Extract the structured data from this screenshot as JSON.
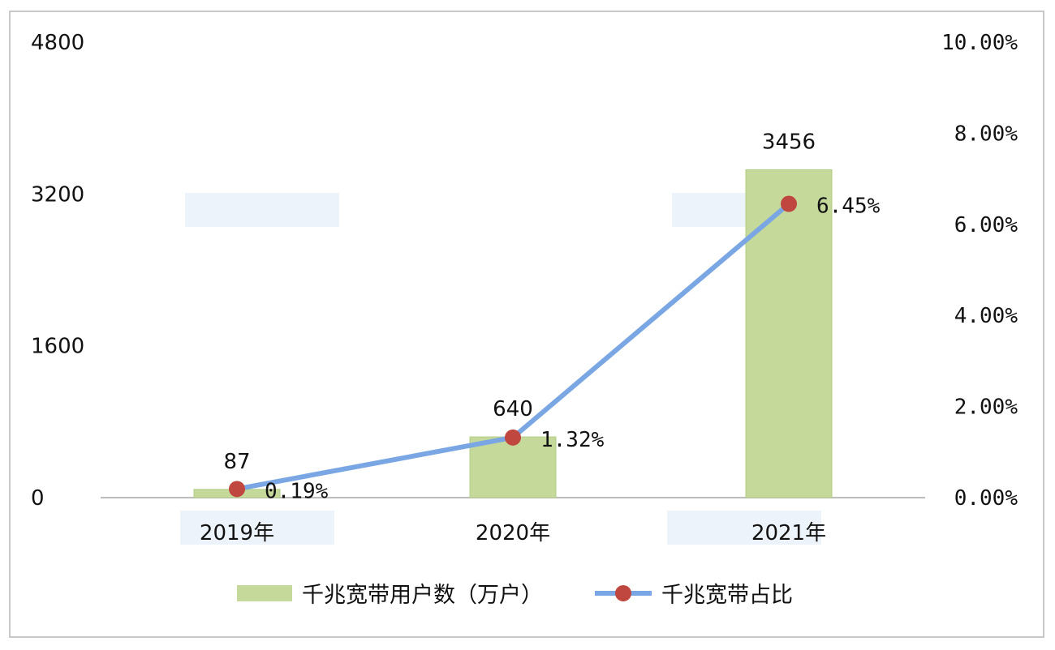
{
  "chart_data": {
    "type": "bar",
    "categories": [
      "2019年",
      "2020年",
      "2021年"
    ],
    "series": [
      {
        "name": "千兆宽带用户数（万户）",
        "type": "bar",
        "axis": "left",
        "values": [
          87,
          640,
          3456
        ],
        "labels": [
          "87",
          "640",
          "3456"
        ],
        "color": "#c5d99a"
      },
      {
        "name": "千兆宽带占比",
        "type": "line",
        "axis": "right",
        "values": [
          0.19,
          1.32,
          6.45
        ],
        "labels": [
          "0.19%",
          "1.32%",
          "6.45%"
        ],
        "line_color": "#7aa7e3",
        "marker_color": "#c0473f"
      }
    ],
    "y_left": {
      "ticks": [
        "0",
        "1600",
        "3200",
        "4800"
      ],
      "range": [
        0,
        4800
      ]
    },
    "y_right": {
      "ticks": [
        "0.00%",
        "2.00%",
        "4.00%",
        "6.00%",
        "8.00%",
        "10.00%"
      ],
      "range": [
        0,
        10
      ]
    },
    "grid": false,
    "legend": "bottom"
  }
}
